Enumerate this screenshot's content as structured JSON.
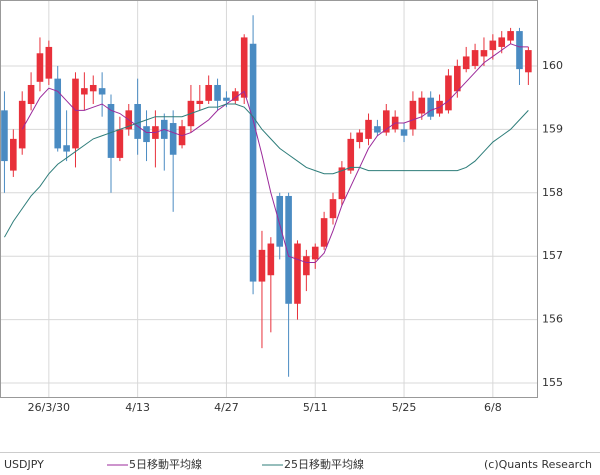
{
  "chart_data": {
    "type": "candlestick",
    "symbol": "USDJPY",
    "source": "(c)Quants Research",
    "categories": [
      null,
      null,
      null,
      null,
      null,
      "26/3/30",
      null,
      null,
      null,
      null,
      null,
      null,
      null,
      null,
      null,
      "4/13",
      null,
      null,
      null,
      null,
      null,
      null,
      null,
      null,
      null,
      "4/27",
      null,
      null,
      null,
      null,
      null,
      null,
      null,
      null,
      null,
      "5/11",
      null,
      null,
      null,
      null,
      null,
      null,
      null,
      null,
      null,
      "5/25",
      null,
      null,
      null,
      null,
      null,
      null,
      null,
      null,
      null,
      "6/8",
      null,
      null,
      null,
      null
    ],
    "open": [
      159.3,
      158.35,
      158.7,
      159.4,
      159.75,
      159.8,
      159.8,
      158.75,
      158.7,
      159.55,
      159.6,
      159.65,
      159.4,
      158.55,
      159.0,
      159.4,
      159.05,
      158.85,
      159.15,
      159.1,
      158.75,
      159.05,
      159.4,
      159.45,
      159.7,
      159.5,
      159.45,
      159.5,
      160.35,
      156.6,
      156.7,
      157.95,
      157.95,
      156.25,
      156.7,
      156.95,
      157.15,
      157.6,
      157.9,
      158.35,
      158.8,
      158.85,
      159.05,
      158.95,
      159.0,
      159.0,
      159.0,
      159.25,
      159.5,
      159.25,
      159.3,
      159.6,
      159.95,
      160.0,
      160.15,
      160.25,
      160.3,
      160.4,
      160.55,
      159.9
    ],
    "high": [
      159.6,
      159.0,
      159.6,
      159.9,
      160.45,
      160.4,
      160.0,
      159.3,
      159.9,
      159.9,
      159.85,
      159.9,
      159.55,
      159.2,
      159.4,
      159.8,
      159.3,
      159.3,
      159.25,
      159.3,
      159.15,
      159.7,
      159.7,
      159.85,
      159.8,
      159.6,
      159.65,
      160.5,
      160.8,
      157.4,
      157.3,
      158.0,
      158.0,
      157.25,
      157.1,
      157.2,
      157.7,
      158.0,
      158.5,
      158.95,
      159.0,
      159.25,
      159.15,
      159.4,
      159.3,
      159.1,
      159.6,
      159.6,
      159.6,
      159.55,
      159.95,
      160.1,
      160.3,
      160.35,
      160.45,
      160.5,
      160.55,
      160.6,
      160.6,
      160.3
    ],
    "low": [
      158.0,
      158.25,
      158.6,
      159.3,
      159.6,
      159.7,
      158.65,
      158.5,
      158.4,
      159.3,
      159.4,
      159.2,
      158.0,
      158.5,
      158.9,
      158.6,
      158.5,
      158.4,
      158.35,
      157.7,
      158.7,
      158.95,
      159.3,
      159.4,
      159.3,
      159.35,
      159.4,
      159.4,
      156.4,
      155.55,
      155.8,
      156.95,
      155.1,
      156.0,
      156.45,
      156.8,
      157.1,
      157.5,
      157.8,
      158.3,
      158.7,
      158.75,
      158.9,
      158.9,
      158.95,
      158.8,
      158.9,
      159.15,
      159.15,
      159.2,
      159.25,
      159.5,
      159.9,
      159.95,
      160.0,
      160.1,
      160.2,
      160.35,
      159.7,
      159.7
    ],
    "close": [
      158.5,
      158.85,
      159.45,
      159.7,
      160.2,
      160.3,
      158.7,
      158.65,
      159.8,
      159.65,
      159.7,
      159.55,
      158.55,
      159.0,
      159.3,
      158.85,
      158.8,
      159.05,
      158.85,
      158.6,
      159.05,
      159.45,
      159.45,
      159.7,
      159.45,
      159.45,
      159.6,
      160.45,
      156.6,
      157.1,
      157.2,
      157.15,
      156.25,
      157.2,
      157.0,
      157.15,
      157.6,
      157.9,
      158.4,
      158.85,
      158.95,
      159.15,
      158.95,
      159.3,
      159.2,
      158.9,
      159.45,
      159.5,
      159.2,
      159.45,
      159.85,
      160.0,
      160.15,
      160.25,
      160.25,
      160.4,
      160.45,
      160.55,
      159.95,
      160.25
    ],
    "up_color": "#e8303a",
    "down_color": "#4a8bc2",
    "series": [
      {
        "name": "5日移動平均線",
        "color": "#9b2a9b",
        "values": [
          null,
          null,
          159.0,
          159.25,
          159.5,
          159.65,
          159.6,
          159.45,
          159.3,
          159.3,
          159.35,
          159.4,
          159.3,
          159.25,
          159.15,
          159.05,
          158.95,
          158.95,
          159.0,
          158.95,
          158.9,
          158.95,
          159.05,
          159.15,
          159.3,
          159.4,
          159.5,
          159.6,
          159.15,
          158.6,
          158.0,
          157.5,
          157.0,
          156.95,
          156.9,
          156.9,
          157.05,
          157.4,
          157.8,
          158.1,
          158.4,
          158.7,
          158.9,
          159.0,
          159.1,
          159.1,
          159.15,
          159.2,
          159.3,
          159.35,
          159.45,
          159.6,
          159.75,
          159.9,
          160.05,
          160.15,
          160.25,
          160.35,
          160.3,
          160.3
        ]
      },
      {
        "name": "25日移動平均線",
        "color": "#2e7d7a",
        "values": [
          157.3,
          157.55,
          157.75,
          157.95,
          158.1,
          158.3,
          158.45,
          158.55,
          158.65,
          158.75,
          158.85,
          158.9,
          158.95,
          159.0,
          159.05,
          159.1,
          159.15,
          159.2,
          159.2,
          159.2,
          159.2,
          159.25,
          159.3,
          159.35,
          159.35,
          159.4,
          159.4,
          159.35,
          159.2,
          159.0,
          158.85,
          158.7,
          158.6,
          158.5,
          158.4,
          158.35,
          158.3,
          158.3,
          158.35,
          158.4,
          158.4,
          158.35,
          158.35,
          158.35,
          158.35,
          158.35,
          158.35,
          158.35,
          158.35,
          158.35,
          158.35,
          158.35,
          158.4,
          158.5,
          158.65,
          158.8,
          158.9,
          159.0,
          159.15,
          159.3
        ]
      }
    ],
    "ylim": [
      154.78,
      161.04
    ],
    "yticks": [
      155,
      156,
      157,
      158,
      159,
      160
    ],
    "grid": true
  }
}
